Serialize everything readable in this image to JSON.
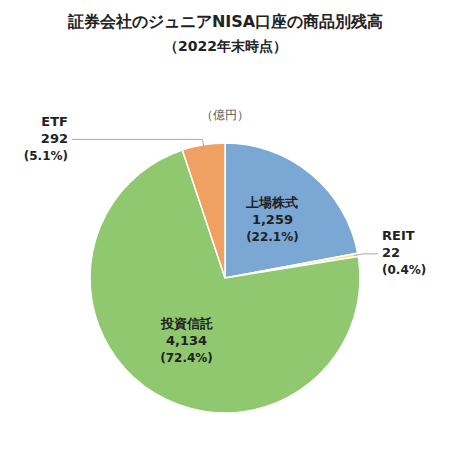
{
  "chart_data": {
    "type": "pie",
    "title": "証券会社のジュニアNISA口座の商品別残高",
    "subtitle": "（2022年末時点）",
    "unit_label": "（億円）",
    "labels": [
      "上場株式",
      "REIT",
      "投資信託",
      "ETF"
    ],
    "values": [
      1259,
      22,
      4134,
      292
    ],
    "value_labels": [
      "1,259",
      "22",
      "4,134",
      "292"
    ],
    "percent_values": [
      22.1,
      0.4,
      72.4,
      5.1
    ],
    "percent_labels": [
      "(22.1%)",
      "(0.4%)",
      "(72.4%)",
      "(5.1%)"
    ],
    "colors": [
      "#7ba7d4",
      "#f5e87a",
      "#8fc86e",
      "#f0a060"
    ],
    "data_labels": true
  }
}
